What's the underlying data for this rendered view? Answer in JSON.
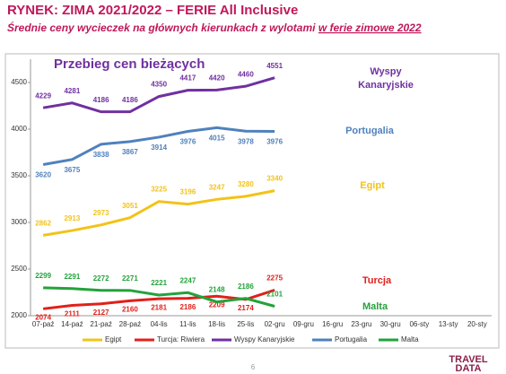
{
  "header": {
    "title": "RYNEK: ZIMA 2021/2022 – FERIE All Inclusive",
    "subtitle": "Średnie ceny wycieczek na głównych kierunkach z wylotami",
    "subtitle_highlight": "w ferie zimowe 2022"
  },
  "chart_data": {
    "type": "line",
    "title": "Przebieg cen bieżących",
    "categories": [
      "07-paź",
      "14-paź",
      "21-paź",
      "28-paź",
      "04-lis",
      "11-lis",
      "18-lis",
      "25-lis",
      "02-gru",
      "09-gru",
      "16-gru",
      "23-gru",
      "30-gru",
      "06-sty",
      "13-sty",
      "20-sty"
    ],
    "series": [
      {
        "name": "Egipt",
        "color": "#f2c318",
        "values": [
          2862,
          2913,
          2973,
          3051,
          3225,
          3196,
          3247,
          3280,
          3340,
          null,
          null,
          null,
          null,
          null,
          null,
          null
        ]
      },
      {
        "name": "Turcja: Riwiera",
        "color": "#e0201b",
        "values": [
          2074,
          2111,
          2127,
          2160,
          2181,
          2186,
          2209,
          2174,
          2275,
          null,
          null,
          null,
          null,
          null,
          null,
          null
        ]
      },
      {
        "name": "Wyspy Kanaryjskie",
        "color": "#7030a0",
        "values": [
          4229,
          4281,
          4186,
          4186,
          4350,
          4417,
          4420,
          4460,
          4551,
          null,
          null,
          null,
          null,
          null,
          null,
          null
        ]
      },
      {
        "name": "Portugalia",
        "color": "#4f81bd",
        "values": [
          3620,
          3675,
          3838,
          3867,
          3914,
          3976,
          4015,
          3978,
          3976,
          null,
          null,
          null,
          null,
          null,
          null,
          null
        ]
      },
      {
        "name": "Malta",
        "color": "#22a33a",
        "values": [
          2299,
          2291,
          2272,
          2271,
          2221,
          2247,
          2148,
          2186,
          2101,
          null,
          null,
          null,
          null,
          null,
          null,
          null
        ]
      }
    ],
    "ylim": [
      2000,
      4750
    ],
    "yticks": [
      2000,
      2500,
      3000,
      3500,
      4000,
      4500
    ],
    "annotations": [
      {
        "text": "Wyspy",
        "color": "#7030a0"
      },
      {
        "text": "Kanaryjskie",
        "color": "#7030a0"
      },
      {
        "text": "Portugalia",
        "color": "#4f81bd"
      },
      {
        "text": "Egipt",
        "color": "#f2c318"
      },
      {
        "text": "Turcja",
        "color": "#e0201b"
      },
      {
        "text": "Malta",
        "color": "#22a33a"
      }
    ]
  },
  "footer": {
    "page": "6",
    "logo_top": "TRAVEL",
    "logo_bottom": "DATA"
  }
}
